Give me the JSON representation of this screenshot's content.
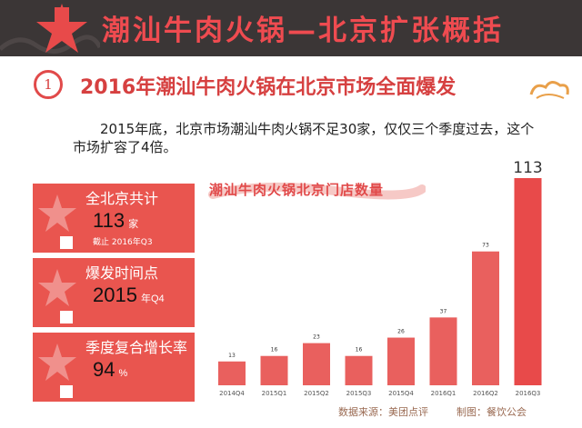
{
  "header": {
    "title": "潮汕牛肉火锅—北京扩张概括"
  },
  "section": {
    "number": "1",
    "title": "2016年潮汕牛肉火锅在北京市场全面爆发"
  },
  "description": "2015年底，北京市场潮汕牛肉火锅不足30家，仅仅三个季度过去，这个市场扩容了4倍。",
  "cards": [
    {
      "header": "全北京共计",
      "value": "113",
      "unit": "家",
      "note": "截止 2016年Q3"
    },
    {
      "header": "爆发时间点",
      "value": "2015",
      "unit": "年Q4",
      "note": ""
    },
    {
      "header": "季度复合增长率",
      "value": "94",
      "unit": "%",
      "note": ""
    }
  ],
  "chart_data": {
    "type": "bar",
    "title": "潮汕牛肉火锅北京门店数量",
    "categories": [
      "2014Q4",
      "2015Q1",
      "2015Q2",
      "2015Q3",
      "2015Q4",
      "2016Q1",
      "2016Q2",
      "2016Q3"
    ],
    "values": [
      13,
      16,
      23,
      16,
      26,
      37,
      73,
      113
    ],
    "ylim": [
      0,
      113
    ],
    "grid": false,
    "colors": {
      "bar": "#e9605e",
      "bar_last": "#e84a4a"
    }
  },
  "footer": {
    "source": "数据来源：美团点评",
    "maker": "制图：餐饮公会"
  }
}
